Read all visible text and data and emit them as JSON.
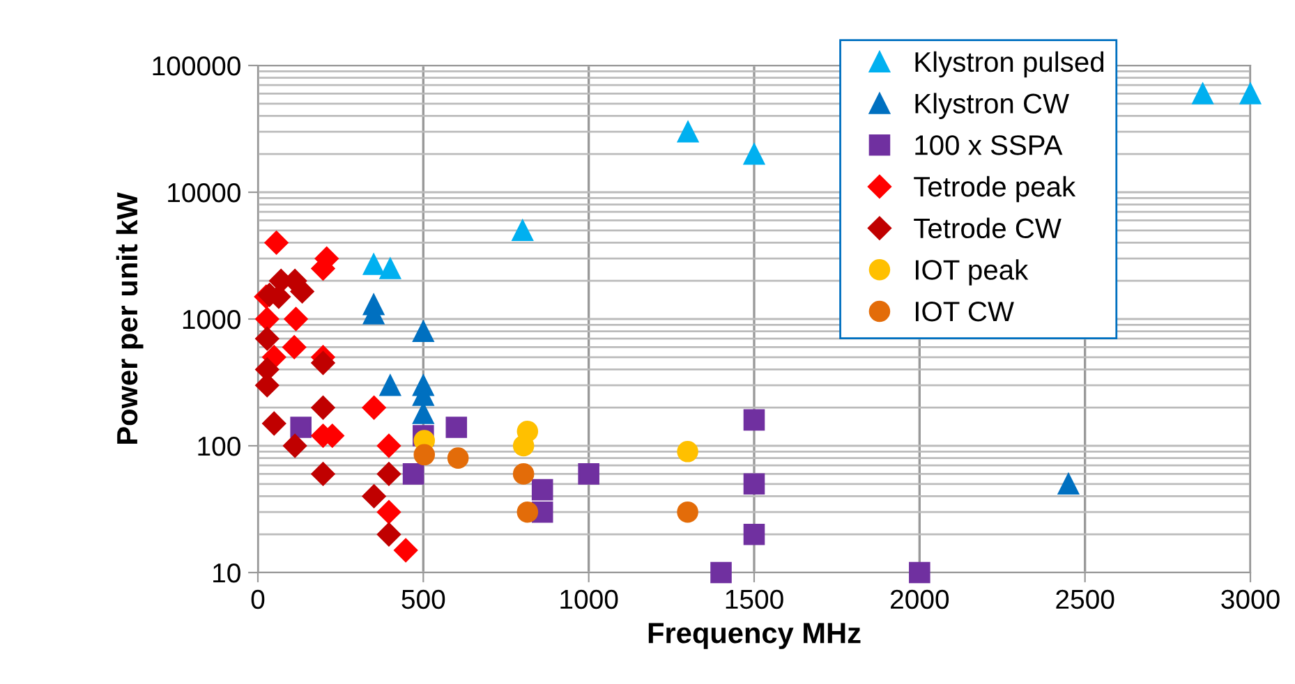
{
  "chart_data": {
    "type": "scatter",
    "xlabel": "Frequency MHz",
    "ylabel": "Power per unit kW",
    "log": "y",
    "xlim": [
      0,
      3000
    ],
    "xticks": [
      0,
      500,
      1000,
      1500,
      2000,
      2500,
      3000
    ],
    "ylim": [
      10,
      100000
    ],
    "yticks": [
      10,
      100,
      1000,
      10000,
      100000
    ],
    "grid": true,
    "legend": "top right",
    "series": [
      {
        "name": "Klystron pulsed",
        "color": "#00b0f0",
        "marker": "triangle",
        "x": [
          350,
          400,
          800,
          1300,
          1500,
          2856,
          3000
        ],
        "values": [
          2700,
          2500,
          5000,
          30000,
          20000,
          60000,
          60000
        ]
      },
      {
        "name": "Klystron CW",
        "color": "#0070c0",
        "marker": "triangle",
        "x": [
          350,
          350,
          500,
          400,
          500,
          500,
          500,
          2450
        ],
        "values": [
          1300,
          1100,
          800,
          300,
          300,
          250,
          180,
          50
        ]
      },
      {
        "name": "100 x SSPA",
        "color": "#7030a0",
        "marker": "square",
        "x": [
          130,
          500,
          470,
          600,
          860,
          860,
          1000,
          1500,
          1500,
          1500,
          1400,
          2000
        ],
        "values": [
          140,
          120,
          60,
          140,
          45,
          30,
          60,
          160,
          50,
          20,
          10,
          10
        ]
      },
      {
        "name": "Tetrode peak",
        "color": "#ff0000",
        "marker": "diamond",
        "x": [
          56,
          208,
          197,
          25,
          28,
          115,
          110,
          49,
          197,
          351,
          197,
          225,
          396,
          396,
          447
        ],
        "values": [
          4000,
          3000,
          2500,
          1500,
          1000,
          1000,
          600,
          500,
          500,
          200,
          120,
          120,
          100,
          30,
          15
        ]
      },
      {
        "name": "Tetrode CW",
        "color": "#c00000",
        "marker": "diamond",
        "x": [
          70,
          112,
          134,
          63,
          35,
          28,
          28,
          28,
          197,
          197,
          49,
          112,
          197,
          396,
          351,
          396
        ],
        "values": [
          2000,
          2000,
          1650,
          1500,
          1550,
          700,
          400,
          300,
          450,
          200,
          150,
          100,
          60,
          60,
          40,
          20
        ]
      },
      {
        "name": "IOT peak",
        "color": "#ffc000",
        "marker": "circle",
        "x": [
          503,
          815,
          803,
          1299
        ],
        "values": [
          110,
          130,
          100,
          90
        ]
      },
      {
        "name": "IOT CW",
        "color": "#e36c09",
        "marker": "circle",
        "x": [
          503,
          605,
          803,
          815,
          1299
        ],
        "values": [
          85,
          80,
          60,
          30,
          30
        ]
      }
    ]
  }
}
